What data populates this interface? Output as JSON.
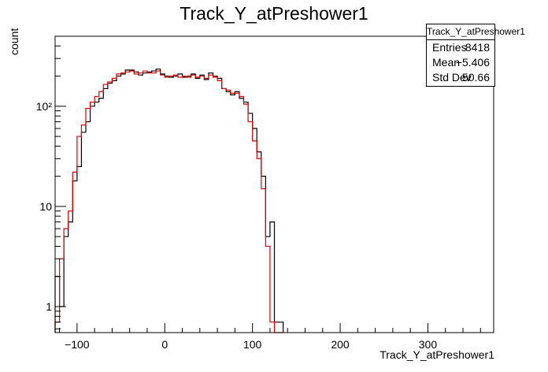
{
  "chart_data": {
    "type": "histogram",
    "title": "Track_Y_atPreshower1",
    "xlabel": "Track_Y_atPreshower1",
    "ylabel": "count",
    "xlim": [
      -125,
      375
    ],
    "ylim": [
      0.55,
      500
    ],
    "yscale": "log",
    "grid": false,
    "bin_width": 5,
    "x_ticks": [
      -100,
      0,
      100,
      200,
      300
    ],
    "y_ticks": [
      {
        "value": 1,
        "label": "1"
      },
      {
        "value": 10,
        "label": "10"
      },
      {
        "value": 100,
        "label": "10²"
      }
    ],
    "series": [
      {
        "color": "#000000",
        "bin_starts": [
          -125,
          -120,
          -115,
          -110,
          -105,
          -100,
          -95,
          -90,
          -85,
          -80,
          -75,
          -70,
          -65,
          -60,
          -55,
          -50,
          -45,
          -40,
          -35,
          -30,
          -25,
          -20,
          -15,
          -10,
          -5,
          0,
          5,
          10,
          15,
          20,
          25,
          30,
          35,
          40,
          45,
          50,
          55,
          60,
          65,
          70,
          75,
          80,
          85,
          90,
          95,
          100,
          105,
          110,
          115,
          120,
          125,
          130
        ],
        "values": [
          2,
          1,
          5,
          7,
          18,
          25,
          55,
          70,
          100,
          110,
          120,
          150,
          170,
          180,
          200,
          210,
          230,
          230,
          220,
          205,
          215,
          220,
          225,
          235,
          210,
          200,
          195,
          200,
          210,
          195,
          200,
          210,
          190,
          205,
          185,
          215,
          200,
          190,
          150,
          140,
          130,
          140,
          120,
          110,
          85,
          60,
          35,
          20,
          5,
          7,
          0.7,
          0.7
        ]
      },
      {
        "color": "#e00000",
        "bin_starts": [
          -125,
          -120,
          -115,
          -110,
          -105,
          -100,
          -95,
          -90,
          -85,
          -80,
          -75,
          -70,
          -65,
          -60,
          -55,
          -50,
          -45,
          -40,
          -35,
          -30,
          -25,
          -20,
          -15,
          -10,
          -5,
          0,
          5,
          10,
          15,
          20,
          25,
          30,
          35,
          40,
          45,
          50,
          55,
          60,
          65,
          70,
          75,
          80,
          85,
          90,
          95,
          100,
          105,
          110,
          115,
          120,
          125,
          130
        ],
        "values": [
          0.7,
          3,
          6,
          9,
          22,
          50,
          65,
          95,
          110,
          125,
          140,
          165,
          175,
          190,
          210,
          215,
          220,
          225,
          210,
          215,
          225,
          215,
          215,
          225,
          205,
          195,
          200,
          205,
          195,
          200,
          195,
          205,
          195,
          200,
          190,
          205,
          195,
          180,
          150,
          145,
          135,
          135,
          125,
          105,
          70,
          45,
          30,
          15,
          4,
          0.7,
          0,
          0
        ]
      }
    ],
    "stats_box": {
      "title": "Track_Y_atPreshower1",
      "entries_label": "Entries",
      "entries_value": "8418",
      "mean_label": "Mean",
      "mean_value": "−5.406",
      "stddev_label": "Std Dev",
      "stddev_value": "50.66"
    }
  }
}
